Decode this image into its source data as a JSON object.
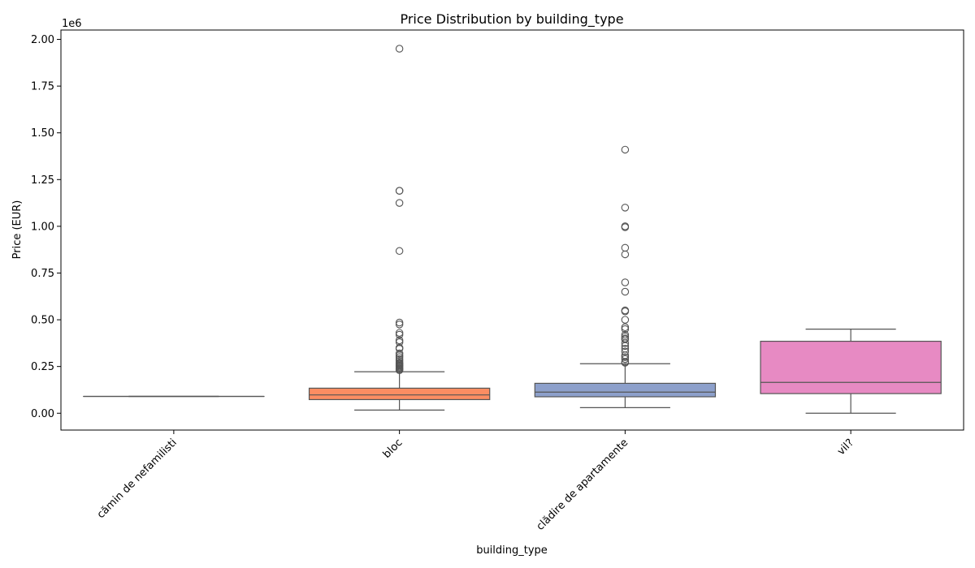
{
  "chart_data": {
    "type": "box",
    "title": "Price Distribution by building_type",
    "xlabel": "building_type",
    "ylabel": "Price (EUR)",
    "y_offset_label": "1e6",
    "y_scale_factor": 1000000,
    "ylim": [
      -0.09,
      2.05
    ],
    "yticks": [
      0.0,
      0.25,
      0.5,
      0.75,
      1.0,
      1.25,
      1.5,
      1.75,
      2.0
    ],
    "ytick_labels": [
      "0.00",
      "0.25",
      "0.50",
      "0.75",
      "1.00",
      "1.25",
      "1.50",
      "1.75",
      "2.00"
    ],
    "grid": false,
    "categories": [
      "cămin de nefamilisti",
      "bloc",
      "clădire de apartamente",
      "vil?"
    ],
    "series": [
      {
        "category": "cămin de nefamilisti",
        "color": "#66c2a5",
        "whisker_low": 0.09,
        "q1": 0.09,
        "median": 0.09,
        "q3": 0.09,
        "whisker_high": 0.09,
        "outliers": []
      },
      {
        "category": "bloc",
        "color": "#fc8d62",
        "whisker_low": 0.017,
        "q1": 0.073,
        "median": 0.098,
        "q3": 0.134,
        "whisker_high": 0.222,
        "outliers": [
          1.95,
          1.19,
          1.19,
          1.125,
          0.868,
          0.485,
          0.475,
          0.43,
          0.42,
          0.39,
          0.38,
          0.35,
          0.345,
          0.32,
          0.31,
          0.3,
          0.29,
          0.28,
          0.27,
          0.265,
          0.26,
          0.255,
          0.25,
          0.245,
          0.24,
          0.235,
          0.23
        ]
      },
      {
        "category": "clădire de apartamente",
        "color": "#8da0cb",
        "whisker_low": 0.03,
        "q1": 0.088,
        "median": 0.113,
        "q3": 0.16,
        "whisker_high": 0.265,
        "outliers": [
          1.41,
          1.1,
          1.0,
          0.995,
          0.885,
          0.85,
          0.7,
          0.65,
          0.55,
          0.545,
          0.5,
          0.46,
          0.45,
          0.42,
          0.41,
          0.4,
          0.395,
          0.375,
          0.36,
          0.345,
          0.33,
          0.31,
          0.3,
          0.29,
          0.275,
          0.27
        ]
      },
      {
        "category": "vil?",
        "color": "#e78ac3",
        "whisker_low": 0.0,
        "q1": 0.105,
        "median": 0.165,
        "q3": 0.385,
        "whisker_high": 0.45,
        "outliers": []
      }
    ]
  }
}
